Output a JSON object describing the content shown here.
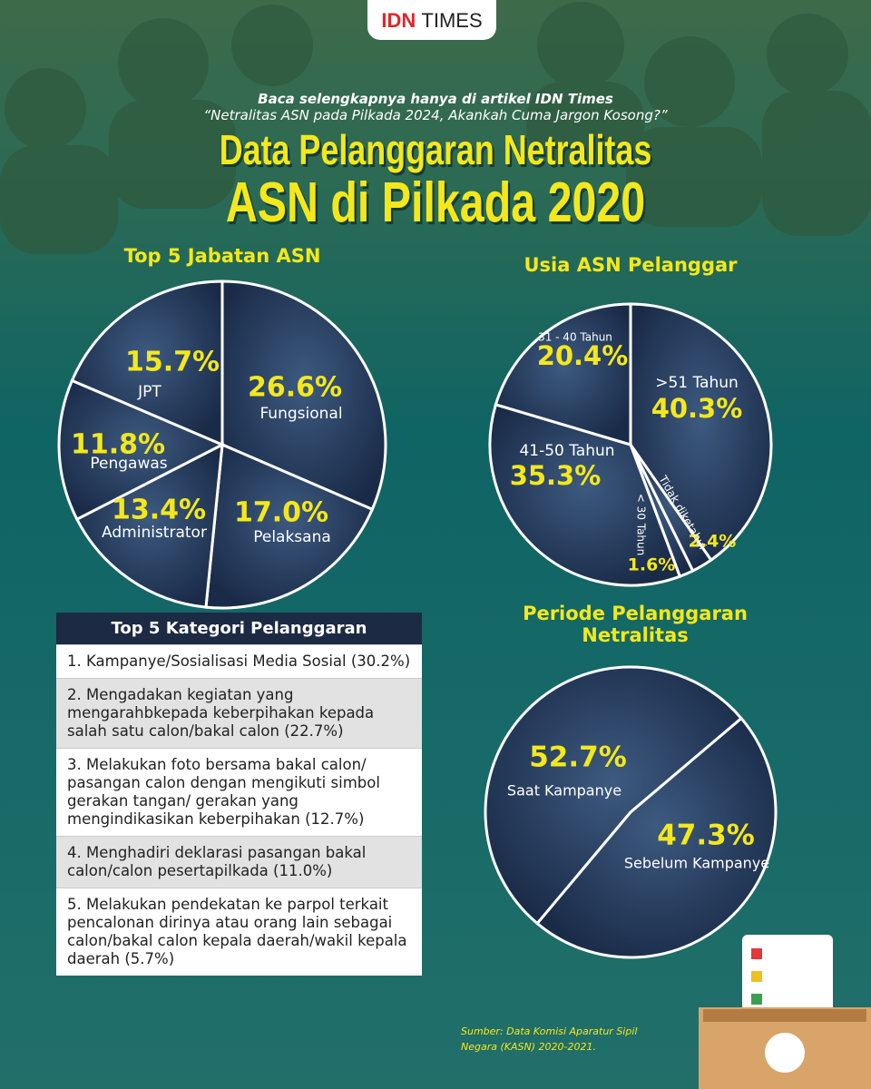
{
  "header": {
    "brand_idn": "IDN",
    "brand_times": "TIMES",
    "intro": "Baca selengkapnya hanya di artikel IDN Times",
    "article": "“Netralitas ASN pada Pilkada 2024, Akankah Cuma Jargon Kosong?”",
    "title_line1": "Data Pelanggaran Netralitas",
    "title_line2": "ASN di Pilkada 2020"
  },
  "chart_data": [
    {
      "type": "pie",
      "title": "Top 5 Jabatan ASN",
      "color": "#1c2f4f",
      "categories": [
        "Fungsional",
        "Pelaksana",
        "Administrator",
        "Pengawas",
        "JPT"
      ],
      "values": [
        26.6,
        17.0,
        13.4,
        11.8,
        15.7
      ],
      "value_labels": [
        "26.6%",
        "17.0%",
        "13.4%",
        "11.8%",
        "15.7%"
      ]
    },
    {
      "type": "pie",
      "title": "Usia ASN Pelanggar",
      "color": "#1c2f4f",
      "categories": [
        ">51 Tahun",
        "Tidak diketahui",
        "< 30 Tahun",
        "41-50 Tahun",
        "31 - 40 Tahun"
      ],
      "values": [
        40.3,
        2.4,
        1.6,
        35.3,
        20.4
      ],
      "value_labels": [
        "40.3%",
        "2.4%",
        "1.6%",
        "35.3%",
        "20.4%"
      ]
    },
    {
      "type": "pie",
      "title": "Periode Pelanggaran Netralitas",
      "color": "#1c2f4f",
      "categories": [
        "Saat Kampanye",
        "Sebelum Kampanye"
      ],
      "values": [
        52.7,
        47.3
      ],
      "value_labels": [
        "52.7%",
        "47.3%"
      ]
    }
  ],
  "violations": {
    "title": "Top 5 Kategori Pelanggaran",
    "items": [
      "1. Kampanye/Sosialisasi Media Sosial (30.2%)",
      "2. Mengadakan kegiatan yang mengarahbkepada keberpihakan kepada salah satu calon/bakal calon (22.7%)",
      "3. Melakukan foto bersama bakal calon/ pasangan calon dengan mengikuti simbol gerakan tangan/ gerakan yang mengindikasikan keberpihakan (12.7%)",
      "4. Menghadiri deklarasi pasangan bakal calon/calon pesertapilkada (11.0%)",
      "5. Melakukan pendekatan ke parpol terkait pencalonan dirinya atau orang lain sebagai calon/bakal calon kepala daerah/wakil kepala daerah (5.7%)"
    ]
  },
  "source": "Sumber: Data Komisi Aparatur Sipil Negara (KASN) 2020-2021."
}
